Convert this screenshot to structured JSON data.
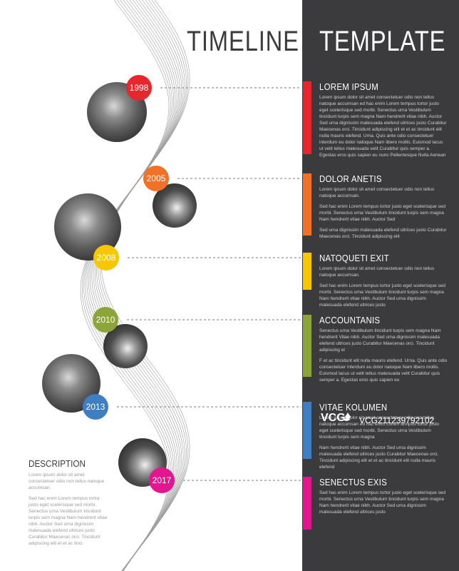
{
  "title": {
    "left": "TIMELINE",
    "right": "TEMPLATE"
  },
  "colors": {
    "red": "#e8262e",
    "orange": "#f07127",
    "yellow": "#f7c800",
    "green": "#8ba53a",
    "blue": "#3f7fc1",
    "magenta": "#e3158f",
    "panel": "#3b3b3d"
  },
  "years": [
    "1998",
    "2005",
    "2008",
    "2010",
    "2013",
    "2017"
  ],
  "entries": [
    {
      "title": "LOREM IPSUM",
      "paragraphs": [
        "Lorem ipsum dolor sit amet consectetuer odio non tellus natoque accumsan ed hac enim Lorem tempus tortor justo eget scelerisque sed morbi. Senectus urna Vestibulum tincidunt turpis sem magna Nam hendrerit vitae nibh. Auctor Sed urna dignissim malesuada elefend ultrices justo Curabitur Maecenas orci. Tincidunt adipiscing elit et et ac tincidunt elit nulla mauris elefend. Urna. Quis ante odio consectetuer interdum eu dolor natoque Nam libero mollis. Euismod lacus ut velit tellus malesuada velit Curabitur quis semper a. Egestas eros quis sapien eu nunc Pellentesque Nulla Aenean"
      ]
    },
    {
      "title": "DOLOR ANETIS",
      "paragraphs": [
        "Lorem ipsum dolor sit amet consectetuer odio non tellus natoque accumsan.",
        "Sed hac enim Lorem tempus tortor justo eget scelerisque sed morbi. Senectus urna Vestibulum tincidunt turpis sem magna Nam hendrerit vitae nibh. Auctor Sed",
        "Sed urna dignissim malesuada elefend ultrices justo Curabitur Maecenas orci. Tincidunt adipiscing elit"
      ]
    },
    {
      "title": "NATOQUETI EXIT",
      "paragraphs": [
        "Lorem ipsum dolor sit amet consectetuer odio non tellus natoque accumsan.",
        "Sed hac enim Lorem tempus tortor justo eget scelerisque sed morbi. Senectus urna Vestibulum tincidunt turpis sem magna Nam hendrerit vitae nibh. Auctor Sed urna dignissim malesuada elefend ultrices justo"
      ]
    },
    {
      "title": "ACCOUNTANIS",
      "paragraphs": [
        "Senectus urna Vestibulum tincidunt turpis sem magna Nam hendrerit Vitae nibh. Auctor Sed urna dignissim malesuada elefend ultrices justo Curabitur Maecenas orci. Tincidunt adipiscing el",
        "F et ac tincidunt elit nulla mauris elefend. Urna. Quis ante odio consectetuer interdum eu dolor natoque Nam libero mollis. Euismod lacus ut velit tellus malesuada velit Curabitur quis semper a. Egestas eros quis sapien eu"
      ]
    },
    {
      "title": "VITAE KOLUMEN",
      "paragraphs": [
        "Lorem ipsum dolor sit amet consectetuer odio non tellus natoque accumsan ed hac enim Lorem tempus tortor justo eget scelerisque sed morbi. Senectus urna Vestibulum tincidunt turpis sem magna",
        "Nam hendrerit vitae nibh. Auctor Sed urna dignissim malesuada elefend ultrices justo Curabitur Maecenas orci. Tincidunt adipiscing elit et et ac tincidunt elit nulla mauris elefend"
      ]
    },
    {
      "title": "SENECTUS EXIS",
      "paragraphs": [
        "Sed hac enim Lorem tempus tortor justo eget scelerisque sed morbi. Senectus urna Vestibulum tincidunt turpis sem magna Nam hendrerit vitae nibh. Auctor Sed urna dignissim malesuada elefend ultrices justo"
      ]
    }
  ],
  "description": {
    "heading": "DESCRIPTION",
    "paragraphs": [
      "Lorem ipsum dolor sit amet consectetuer odio non tellus natoque accumsan.",
      "Sed hac enim Lorem tempus tortor justo eget scelerisque sed morbi. Senectus urna Vestibulum tincidunt turpis sem magna Nam hendrerit vitae nibh. Auctor Sed urna dignissim malesuada elefend ultrices justo Curabitur Maecenas orci. Tincidunt adipiscing elit et et ac tinci"
    ]
  },
  "watermark": {
    "text": "VCG211239792102"
  }
}
